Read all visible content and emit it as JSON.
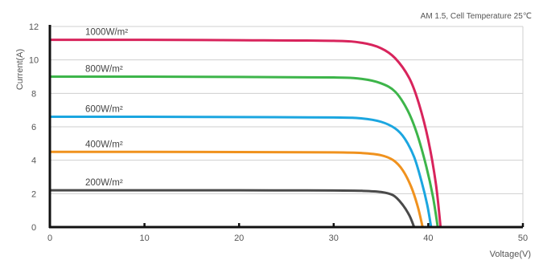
{
  "chart_data": {
    "type": "line",
    "annotation": "AM 1.5, Cell Temperature 25℃",
    "xlabel": "Voltage(V)",
    "ylabel": "Current(A)",
    "xlim": [
      0,
      50
    ],
    "ylim": [
      0,
      12
    ],
    "xticks": [
      "0",
      "10",
      "20",
      "30",
      "40",
      "50"
    ],
    "yticks": [
      "0",
      "2",
      "4",
      "6",
      "8",
      "10",
      "12"
    ],
    "grid": true,
    "series": [
      {
        "name": "1000W/m²",
        "color": "#d8245c",
        "x": [
          0,
          10,
          20,
          30,
          33,
          35,
          36.5,
          38,
          39,
          40,
          40.8,
          41.3
        ],
        "y": [
          11.2,
          11.2,
          11.18,
          11.14,
          11.02,
          10.7,
          10.1,
          8.9,
          7.4,
          5.2,
          2.6,
          0
        ]
      },
      {
        "name": "800W/m²",
        "color": "#3db54a",
        "x": [
          0,
          10,
          20,
          30,
          33,
          35,
          36.5,
          37.8,
          38.8,
          39.8,
          40.5,
          41.0
        ],
        "y": [
          9.0,
          9.0,
          8.98,
          8.95,
          8.86,
          8.6,
          8.1,
          7.0,
          5.6,
          3.6,
          1.8,
          0
        ]
      },
      {
        "name": "600W/m²",
        "color": "#1ba6e0",
        "x": [
          0,
          10,
          20,
          30,
          33,
          35,
          36.5,
          37.5,
          38.5,
          39.3,
          39.9,
          40.3
        ],
        "y": [
          6.6,
          6.6,
          6.58,
          6.56,
          6.5,
          6.3,
          5.9,
          5.3,
          4.2,
          2.7,
          1.3,
          0
        ]
      },
      {
        "name": "400W/m²",
        "color": "#f0921e",
        "x": [
          0,
          10,
          20,
          30,
          33,
          35,
          36.3,
          37.3,
          38.2,
          38.9,
          39.4
        ],
        "y": [
          4.5,
          4.5,
          4.49,
          4.47,
          4.43,
          4.3,
          4.0,
          3.4,
          2.4,
          1.2,
          0
        ]
      },
      {
        "name": "200W/m²",
        "color": "#4a4a4a",
        "x": [
          0,
          10,
          20,
          30,
          33,
          35,
          36.3,
          37.2,
          38.0,
          38.5
        ],
        "y": [
          2.2,
          2.2,
          2.2,
          2.19,
          2.17,
          2.1,
          1.9,
          1.4,
          0.7,
          0
        ]
      }
    ]
  }
}
